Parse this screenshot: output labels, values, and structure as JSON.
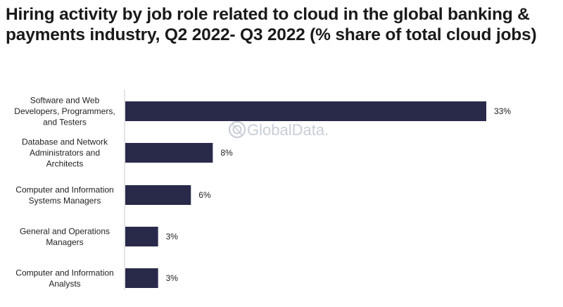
{
  "chart_data": {
    "type": "bar",
    "orientation": "horizontal",
    "title": "Hiring activity by job role related to cloud in the global banking & payments industry, Q2 2022- Q3 2022 (% share of total cloud jobs)",
    "categories": [
      [
        "Software and Web",
        "Developers, Programmers,",
        "and Testers"
      ],
      [
        "Database and Network",
        "Administrators and",
        "Architects"
      ],
      [
        "Computer and Information",
        "Systems Managers"
      ],
      [
        "General and Operations",
        "Managers"
      ],
      [
        "Computer and Information",
        "Analysts"
      ]
    ],
    "values": [
      33,
      8,
      6,
      3,
      3
    ],
    "value_labels": [
      "33%",
      "8%",
      "6%",
      "3%",
      "3%"
    ],
    "xlim": [
      0,
      33
    ],
    "grid": false,
    "legend": "none",
    "bar_color": "#29294a",
    "axis_color": "#cccccc"
  },
  "watermark": {
    "text": "GlobalData.",
    "icon": "globaldata-logo-icon",
    "color": "#c9cdd6"
  }
}
